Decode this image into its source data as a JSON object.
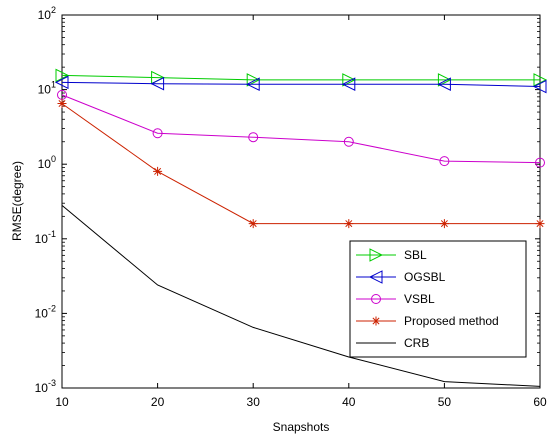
{
  "chart_data": {
    "type": "line",
    "xlabel": "Snapshots",
    "ylabel": "RMSE(degree)",
    "x": [
      10,
      20,
      30,
      40,
      50,
      60
    ],
    "xlim": [
      10,
      60
    ],
    "ylim": [
      0.001,
      100
    ],
    "yscale": "log",
    "grid": false,
    "legend_position": "bottom-right",
    "x_ticks": [
      10,
      20,
      30,
      40,
      50,
      60
    ],
    "y_ticks": [
      {
        "value": 0.001,
        "base": "10",
        "exp": "-3"
      },
      {
        "value": 0.01,
        "base": "10",
        "exp": "-2"
      },
      {
        "value": 0.1,
        "base": "10",
        "exp": "-1"
      },
      {
        "value": 1,
        "base": "10",
        "exp": "0"
      },
      {
        "value": 10,
        "base": "10",
        "exp": "1"
      },
      {
        "value": 100,
        "base": "10",
        "exp": "2"
      }
    ],
    "series": [
      {
        "name": "SBL",
        "color": "#00cc00",
        "marker": "triangle-right",
        "values": [
          15.5,
          14.5,
          13.5,
          13.5,
          13.5,
          13.5
        ]
      },
      {
        "name": "OGSBL",
        "color": "#0000cc",
        "marker": "triangle-left",
        "values": [
          12.5,
          12.0,
          11.8,
          11.8,
          11.8,
          11.0
        ]
      },
      {
        "name": "VSBL",
        "color": "#cc00cc",
        "marker": "circle",
        "values": [
          8.5,
          2.6,
          2.3,
          2.0,
          1.1,
          1.05
        ]
      },
      {
        "name": "Proposed method",
        "color": "#cc2200",
        "marker": "star",
        "values": [
          6.5,
          0.8,
          0.16,
          0.16,
          0.16,
          0.16
        ]
      },
      {
        "name": "CRB",
        "color": "#000000",
        "marker": "none",
        "values": [
          0.28,
          0.024,
          0.0065,
          0.0026,
          0.00122,
          0.00105
        ]
      }
    ]
  }
}
